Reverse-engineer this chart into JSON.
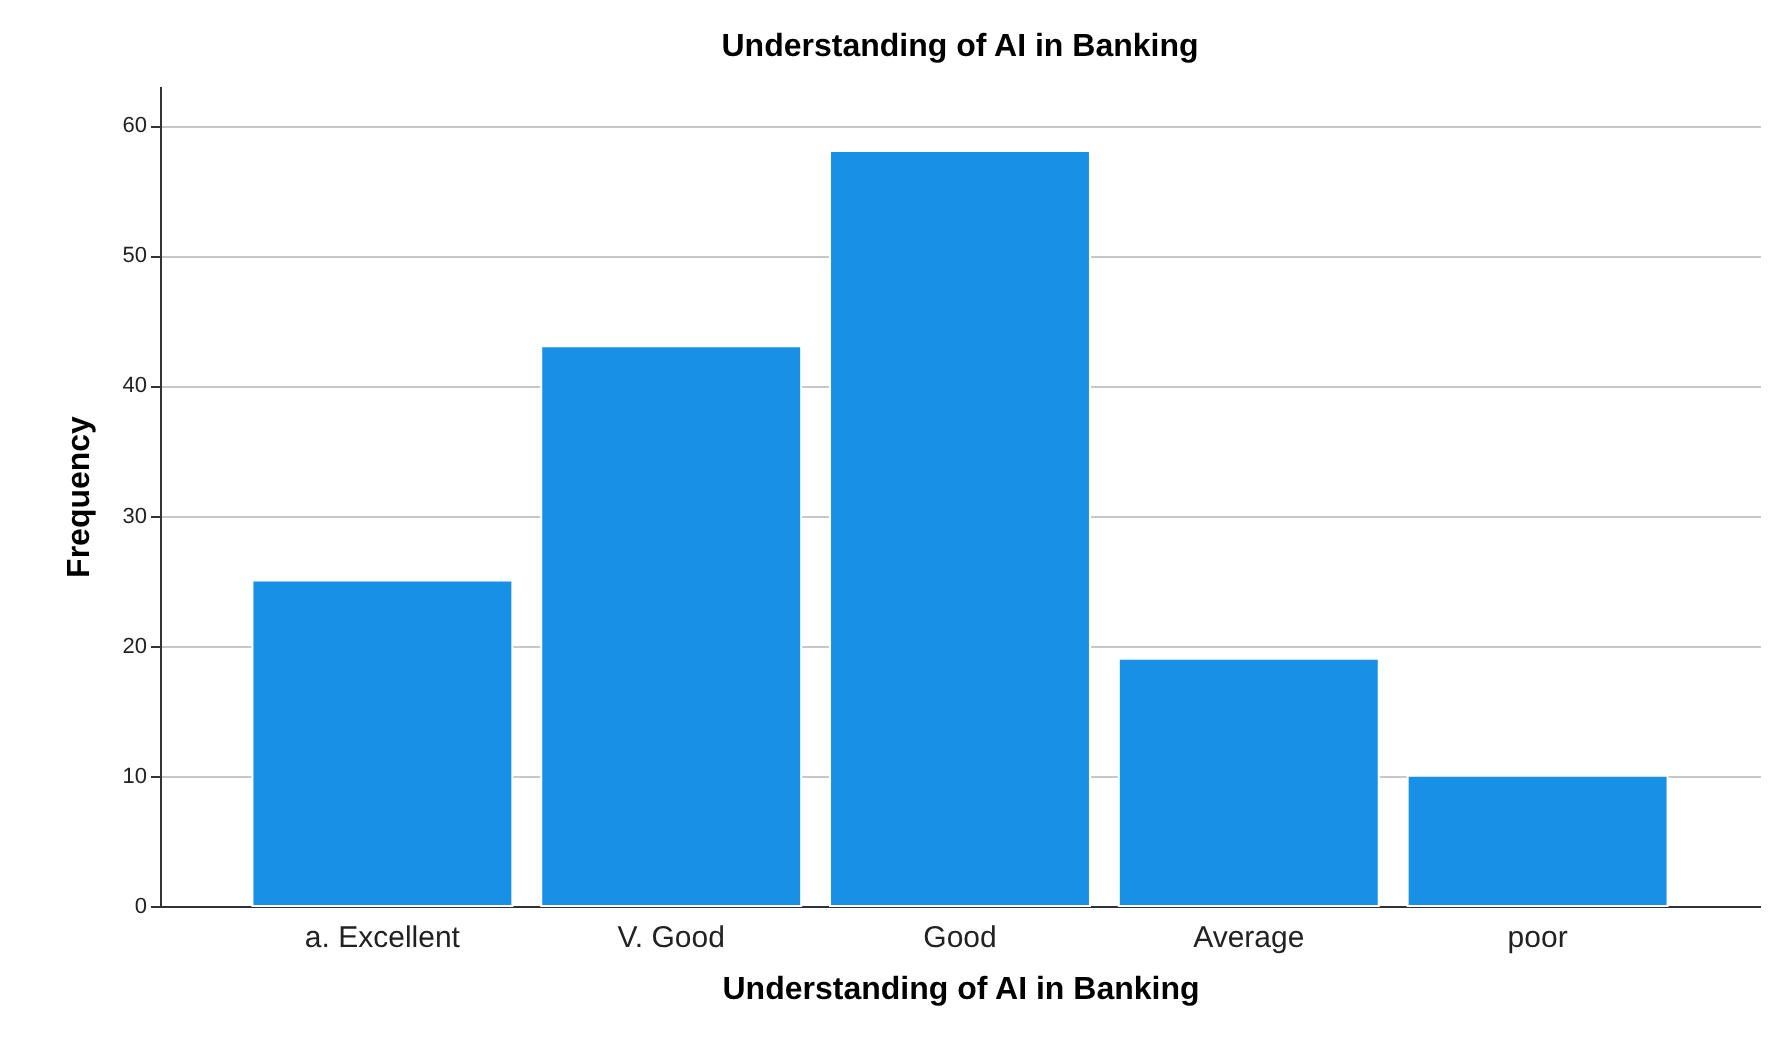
{
  "chart_data": {
    "type": "bar",
    "title": "Understanding of AI in Banking",
    "xlabel": "Understanding of AI in Banking",
    "ylabel": "Frequency",
    "categories": [
      "a. Excellent",
      "V. Good",
      "Good",
      "Average",
      "poor"
    ],
    "values": [
      25,
      43,
      58,
      19,
      10
    ],
    "color": "#1790e6",
    "ylim": [
      0,
      63
    ],
    "yticks": [
      0,
      10,
      20,
      30,
      40,
      50,
      60
    ],
    "grid": "y"
  }
}
